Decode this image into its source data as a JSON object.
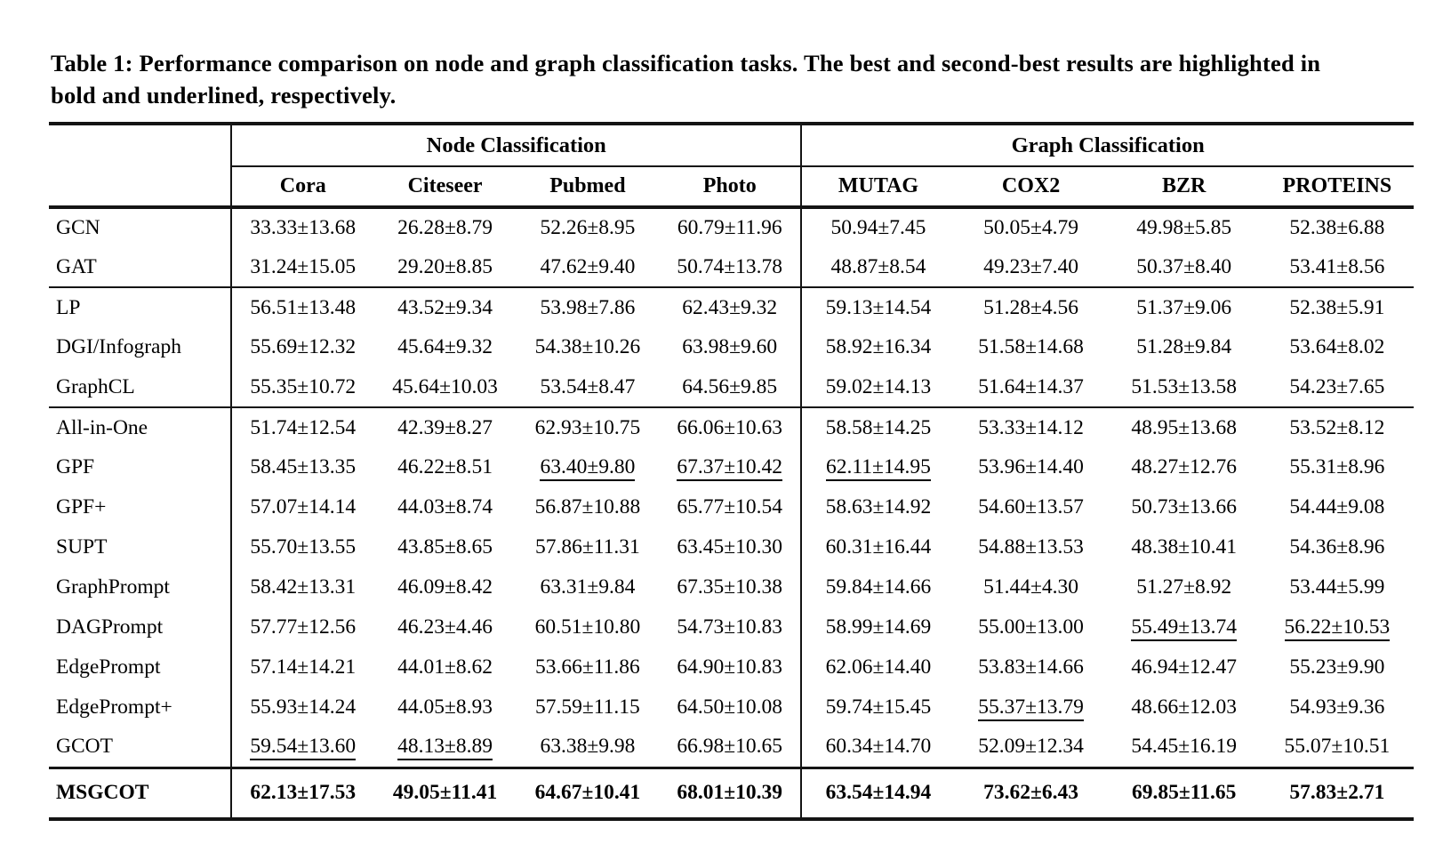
{
  "colors": {
    "background": "#ffffff",
    "text": "#000000",
    "rule": "#141414"
  },
  "caption": "Table 1: Performance comparison on node and graph classification tasks. The best and second-best results are highlighted in bold and underlined, respectively.",
  "table": {
    "group_headers": [
      {
        "label": "Node Classification",
        "span": 4
      },
      {
        "label": "Graph Classification",
        "span": 4
      }
    ],
    "columns": [
      "Cora",
      "Citeseer",
      "Pubmed",
      "Photo",
      "MUTAG",
      "COX2",
      "BZR",
      "PROTEINS"
    ],
    "row_groups": [
      {
        "rows": [
          {
            "label": "GCN",
            "cells": [
              "33.33±13.68",
              "26.28±8.79",
              "52.26±8.95",
              "60.79±11.96",
              "50.94±7.45",
              "50.05±4.79",
              "49.98±5.85",
              "52.38±6.88"
            ]
          },
          {
            "label": "GAT",
            "cells": [
              "31.24±15.05",
              "29.20±8.85",
              "47.62±9.40",
              "50.74±13.78",
              "48.87±8.54",
              "49.23±7.40",
              "50.37±8.40",
              "53.41±8.56"
            ]
          }
        ]
      },
      {
        "rows": [
          {
            "label": "LP",
            "cells": [
              "56.51±13.48",
              "43.52±9.34",
              "53.98±7.86",
              "62.43±9.32",
              "59.13±14.54",
              "51.28±4.56",
              "51.37±9.06",
              "52.38±5.91"
            ]
          },
          {
            "label": "DGI/Infograph",
            "cells": [
              "55.69±12.32",
              "45.64±9.32",
              "54.38±10.26",
              "63.98±9.60",
              "58.92±16.34",
              "51.58±14.68",
              "51.28±9.84",
              "53.64±8.02"
            ]
          },
          {
            "label": "GraphCL",
            "cells": [
              "55.35±10.72",
              "45.64±10.03",
              "53.54±8.47",
              "64.56±9.85",
              "59.02±14.13",
              "51.64±14.37",
              "51.53±13.58",
              "54.23±7.65"
            ]
          }
        ]
      },
      {
        "rows": [
          {
            "label": "All-in-One",
            "cells": [
              "51.74±12.54",
              "42.39±8.27",
              "62.93±10.75",
              "66.06±10.63",
              "58.58±14.25",
              "53.33±14.12",
              "48.95±13.68",
              "53.52±8.12"
            ]
          },
          {
            "label": "GPF",
            "cells": [
              "58.45±13.35",
              "46.22±8.51",
              {
                "text": "63.40±9.80",
                "style": "underline"
              },
              {
                "text": "67.37±10.42",
                "style": "underline"
              },
              {
                "text": "62.11±14.95",
                "style": "underline"
              },
              "53.96±14.40",
              "48.27±12.76",
              "55.31±8.96"
            ]
          },
          {
            "label": "GPF+",
            "cells": [
              "57.07±14.14",
              "44.03±8.74",
              "56.87±10.88",
              "65.77±10.54",
              "58.63±14.92",
              "54.60±13.57",
              "50.73±13.66",
              "54.44±9.08"
            ]
          },
          {
            "label": "SUPT",
            "cells": [
              "55.70±13.55",
              "43.85±8.65",
              "57.86±11.31",
              "63.45±10.30",
              "60.31±16.44",
              "54.88±13.53",
              "48.38±10.41",
              "54.36±8.96"
            ]
          },
          {
            "label": "GraphPrompt",
            "cells": [
              "58.42±13.31",
              "46.09±8.42",
              "63.31±9.84",
              "67.35±10.38",
              "59.84±14.66",
              "51.44±4.30",
              "51.27±8.92",
              "53.44±5.99"
            ]
          },
          {
            "label": "DAGPrompt",
            "cells": [
              "57.77±12.56",
              "46.23±4.46",
              "60.51±10.80",
              "54.73±10.83",
              "58.99±14.69",
              "55.00±13.00",
              {
                "text": "55.49±13.74",
                "style": "underline"
              },
              {
                "text": "56.22±10.53",
                "style": "underline"
              }
            ]
          },
          {
            "label": "EdgePrompt",
            "cells": [
              "57.14±14.21",
              "44.01±8.62",
              "53.66±11.86",
              "64.90±10.83",
              "62.06±14.40",
              "53.83±14.66",
              "46.94±12.47",
              "55.23±9.90"
            ]
          },
          {
            "label": "EdgePrompt+",
            "cells": [
              "55.93±14.24",
              "44.05±8.93",
              "57.59±11.15",
              "64.50±10.08",
              "59.74±15.45",
              {
                "text": "55.37±13.79",
                "style": "underline"
              },
              "48.66±12.03",
              "54.93±9.36"
            ]
          },
          {
            "label": "GCOT",
            "cells": [
              {
                "text": "59.54±13.60",
                "style": "underline"
              },
              {
                "text": "48.13±8.89",
                "style": "underline"
              },
              "63.38±9.98",
              "66.98±10.65",
              "60.34±14.70",
              "52.09±12.34",
              "54.45±16.19",
              "55.07±10.51"
            ]
          }
        ]
      },
      {
        "final": true,
        "rows": [
          {
            "label": "MSGCOT",
            "bold": true,
            "cells": [
              {
                "text": "62.13±17.53",
                "style": "bold"
              },
              {
                "text": "49.05±11.41",
                "style": "bold"
              },
              {
                "text": "64.67±10.41",
                "style": "bold"
              },
              {
                "text": "68.01±10.39",
                "style": "bold"
              },
              {
                "text": "63.54±14.94",
                "style": "bold"
              },
              {
                "text": "73.62±6.43",
                "style": "bold"
              },
              {
                "text": "69.85±11.65",
                "style": "bold"
              },
              {
                "text": "57.83±2.71",
                "style": "bold"
              }
            ]
          }
        ]
      }
    ]
  }
}
